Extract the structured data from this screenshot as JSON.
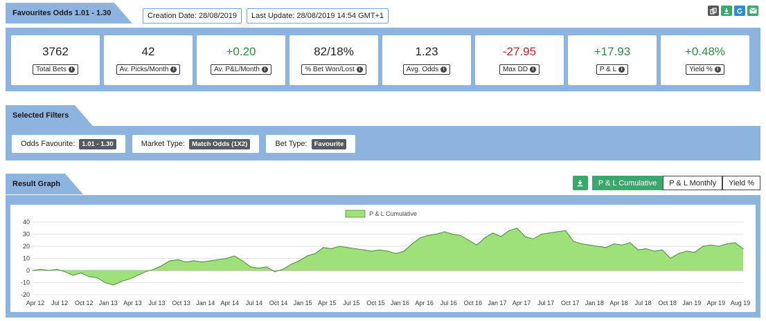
{
  "header": {
    "title": "Favourites Odds 1.01 - 1.30",
    "creation_date": "Creation Date: 28/08/2019",
    "last_update": "Last Update: 28/08/2019 14:54 GMT+1"
  },
  "toolbar_icons": [
    "copy-icon",
    "download-icon",
    "refresh-icon",
    "email-icon"
  ],
  "stats": [
    {
      "value": "3762",
      "label": "Total Bets",
      "tone": "neutral"
    },
    {
      "value": "42",
      "label": "Av. Picks/Month",
      "tone": "neutral"
    },
    {
      "value": "+0.20",
      "label": "Av. P&L/Month",
      "tone": "positive"
    },
    {
      "value": "82/18%",
      "label": "% Bet Won/Lost",
      "tone": "neutral"
    },
    {
      "value": "1.23",
      "label": "Avg. Odds",
      "tone": "neutral"
    },
    {
      "value": "-27.95",
      "label": "Max DD",
      "tone": "negative"
    },
    {
      "value": "+17.93",
      "label": "P & L",
      "tone": "positive"
    },
    {
      "value": "+0.48%",
      "label": "Yield %",
      "tone": "positive"
    }
  ],
  "filters_section": {
    "title": "Selected Filters",
    "items": [
      {
        "label": "Odds Favourite:",
        "value": "1.01 - 1.30"
      },
      {
        "label": "Market Type:",
        "value": "Match Odds (1X2)"
      },
      {
        "label": "Bet Type:",
        "value": "Favourite"
      }
    ]
  },
  "graph_section": {
    "title": "Result Graph",
    "tabs": [
      "P & L Cumulative",
      "P & L Monthly",
      "Yield %"
    ],
    "active_tab": 0
  },
  "colors": {
    "band": "#8db3df",
    "green": "#2e8b3e",
    "red": "#c8202a",
    "area_fill": "#9ee07a",
    "area_stroke": "#4a8a3a",
    "button_green": "#3aa86d"
  },
  "chart_data": {
    "type": "area",
    "series": [
      {
        "name": "P & L Cumulative"
      }
    ],
    "legend_position": "top-center",
    "ylim": [
      -20,
      40
    ],
    "y_ticks": [
      "40",
      "30",
      "20",
      "10",
      "0",
      "-10",
      "-20"
    ],
    "x_tick_labels": [
      "Apr 12",
      "Jul 12",
      "Oct 12",
      "Jan 13",
      "Apr 13",
      "Jul 13",
      "Oct 13",
      "Jan 14",
      "Apr 14",
      "Jul 14",
      "Oct 14",
      "Jan 15",
      "Apr 15",
      "Jul 15",
      "Oct 15",
      "Jan 16",
      "Apr 16",
      "Jul 16",
      "Oct 16",
      "Jan 17",
      "Apr 17",
      "Jul 17",
      "Oct 17",
      "Jan 18",
      "Apr 18",
      "Jul 18",
      "Oct 18",
      "Jan 19",
      "Apr 19",
      "Aug 19"
    ],
    "points": [
      [
        "2012-04",
        0
      ],
      [
        "2012-05",
        1
      ],
      [
        "2012-06",
        0
      ],
      [
        "2012-07",
        1
      ],
      [
        "2012-08",
        -1
      ],
      [
        "2012-09",
        -4
      ],
      [
        "2012-10",
        -2
      ],
      [
        "2012-11",
        -5
      ],
      [
        "2012-12",
        -6
      ],
      [
        "2013-01",
        -10
      ],
      [
        "2013-02",
        -12
      ],
      [
        "2013-03",
        -9
      ],
      [
        "2013-04",
        -7
      ],
      [
        "2013-05",
        -4
      ],
      [
        "2013-06",
        -1
      ],
      [
        "2013-07",
        1
      ],
      [
        "2013-08",
        4
      ],
      [
        "2013-09",
        8
      ],
      [
        "2013-10",
        9
      ],
      [
        "2013-11",
        7
      ],
      [
        "2013-12",
        8
      ],
      [
        "2014-01",
        7
      ],
      [
        "2014-02",
        8
      ],
      [
        "2014-03",
        9
      ],
      [
        "2014-04",
        10
      ],
      [
        "2014-05",
        12
      ],
      [
        "2014-06",
        8
      ],
      [
        "2014-07",
        3
      ],
      [
        "2014-08",
        2
      ],
      [
        "2014-09",
        3
      ],
      [
        "2014-10",
        -1
      ],
      [
        "2014-11",
        1
      ],
      [
        "2014-12",
        5
      ],
      [
        "2015-01",
        8
      ],
      [
        "2015-02",
        12
      ],
      [
        "2015-03",
        14
      ],
      [
        "2015-04",
        19
      ],
      [
        "2015-05",
        18
      ],
      [
        "2015-06",
        20
      ],
      [
        "2015-07",
        19
      ],
      [
        "2015-08",
        18
      ],
      [
        "2015-09",
        17
      ],
      [
        "2015-10",
        16
      ],
      [
        "2015-11",
        17
      ],
      [
        "2015-12",
        16
      ],
      [
        "2016-01",
        14
      ],
      [
        "2016-02",
        16
      ],
      [
        "2016-03",
        22
      ],
      [
        "2016-04",
        27
      ],
      [
        "2016-05",
        29
      ],
      [
        "2016-06",
        30
      ],
      [
        "2016-07",
        32
      ],
      [
        "2016-08",
        30
      ],
      [
        "2016-09",
        29
      ],
      [
        "2016-10",
        25
      ],
      [
        "2016-11",
        21
      ],
      [
        "2016-12",
        27
      ],
      [
        "2017-01",
        31
      ],
      [
        "2017-02",
        28
      ],
      [
        "2017-03",
        33
      ],
      [
        "2017-04",
        35
      ],
      [
        "2017-05",
        28
      ],
      [
        "2017-06",
        26
      ],
      [
        "2017-07",
        30
      ],
      [
        "2017-08",
        31
      ],
      [
        "2017-09",
        32
      ],
      [
        "2017-10",
        33
      ],
      [
        "2017-11",
        24
      ],
      [
        "2017-12",
        22
      ],
      [
        "2018-01",
        21
      ],
      [
        "2018-02",
        20
      ],
      [
        "2018-03",
        19
      ],
      [
        "2018-04",
        22
      ],
      [
        "2018-05",
        21
      ],
      [
        "2018-06",
        23
      ],
      [
        "2018-07",
        17
      ],
      [
        "2018-08",
        18
      ],
      [
        "2018-09",
        16
      ],
      [
        "2018-10",
        17
      ],
      [
        "2018-11",
        10
      ],
      [
        "2018-12",
        14
      ],
      [
        "2019-01",
        16
      ],
      [
        "2019-02",
        15
      ],
      [
        "2019-03",
        20
      ],
      [
        "2019-04",
        21
      ],
      [
        "2019-05",
        20
      ],
      [
        "2019-06",
        22
      ],
      [
        "2019-07",
        23
      ],
      [
        "2019-08",
        18
      ]
    ]
  }
}
